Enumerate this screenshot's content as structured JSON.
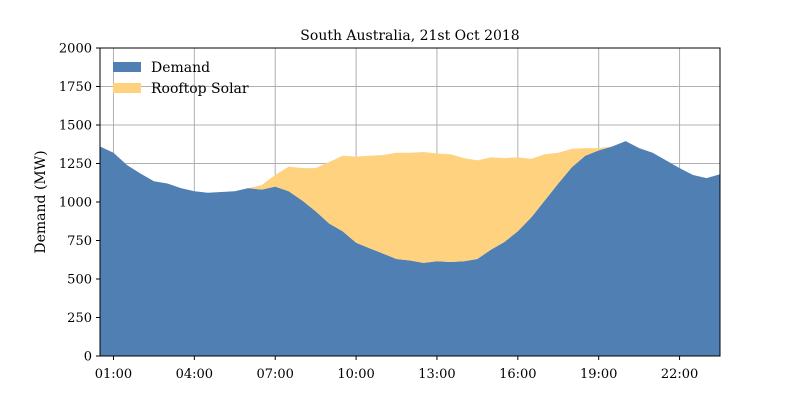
{
  "chart_data": {
    "type": "area",
    "title": "South Australia, 21st Oct 2018",
    "xlabel": "",
    "ylabel": "Demand (MW)",
    "ylim": [
      0,
      2000
    ],
    "yticks": [
      0,
      250,
      500,
      750,
      1000,
      1250,
      1500,
      1750,
      2000
    ],
    "xlim": [
      "00:30",
      "23:30"
    ],
    "xticks": [
      "01:00",
      "04:00",
      "07:00",
      "10:00",
      "13:00",
      "16:00",
      "19:00",
      "22:00"
    ],
    "grid": true,
    "legend_position": "top-left",
    "x": [
      "00:30",
      "01:00",
      "01:30",
      "02:00",
      "02:30",
      "03:00",
      "03:30",
      "04:00",
      "04:30",
      "05:00",
      "05:30",
      "06:00",
      "06:30",
      "07:00",
      "07:30",
      "08:00",
      "08:30",
      "09:00",
      "09:30",
      "10:00",
      "10:30",
      "11:00",
      "11:30",
      "12:00",
      "12:30",
      "13:00",
      "13:30",
      "14:00",
      "14:30",
      "15:00",
      "15:30",
      "16:00",
      "16:30",
      "17:00",
      "17:30",
      "18:00",
      "18:30",
      "19:00",
      "19:30",
      "20:00",
      "20:30",
      "21:00",
      "21:30",
      "22:00",
      "22:30",
      "23:00",
      "23:30"
    ],
    "series": [
      {
        "name": "Demand",
        "color": "#4f7fb3",
        "values": [
          1360,
          1320,
          1240,
          1185,
          1135,
          1120,
          1090,
          1070,
          1060,
          1065,
          1070,
          1090,
          1080,
          1100,
          1070,
          1010,
          940,
          860,
          810,
          735,
          700,
          665,
          630,
          620,
          605,
          615,
          610,
          615,
          630,
          690,
          740,
          810,
          900,
          1010,
          1120,
          1225,
          1300,
          1335,
          1360,
          1395,
          1350,
          1320,
          1270,
          1220,
          1175,
          1155,
          1180
        ]
      },
      {
        "name": "Rooftop Solar",
        "color": "#ffd27f",
        "values": [
          0,
          0,
          0,
          0,
          0,
          0,
          0,
          0,
          0,
          0,
          0,
          0,
          30,
          75,
          160,
          210,
          280,
          400,
          490,
          560,
          600,
          640,
          690,
          700,
          720,
          700,
          700,
          670,
          640,
          600,
          545,
          480,
          380,
          300,
          200,
          120,
          50,
          15,
          0,
          0,
          0,
          0,
          0,
          0,
          0,
          0,
          0
        ]
      }
    ]
  }
}
